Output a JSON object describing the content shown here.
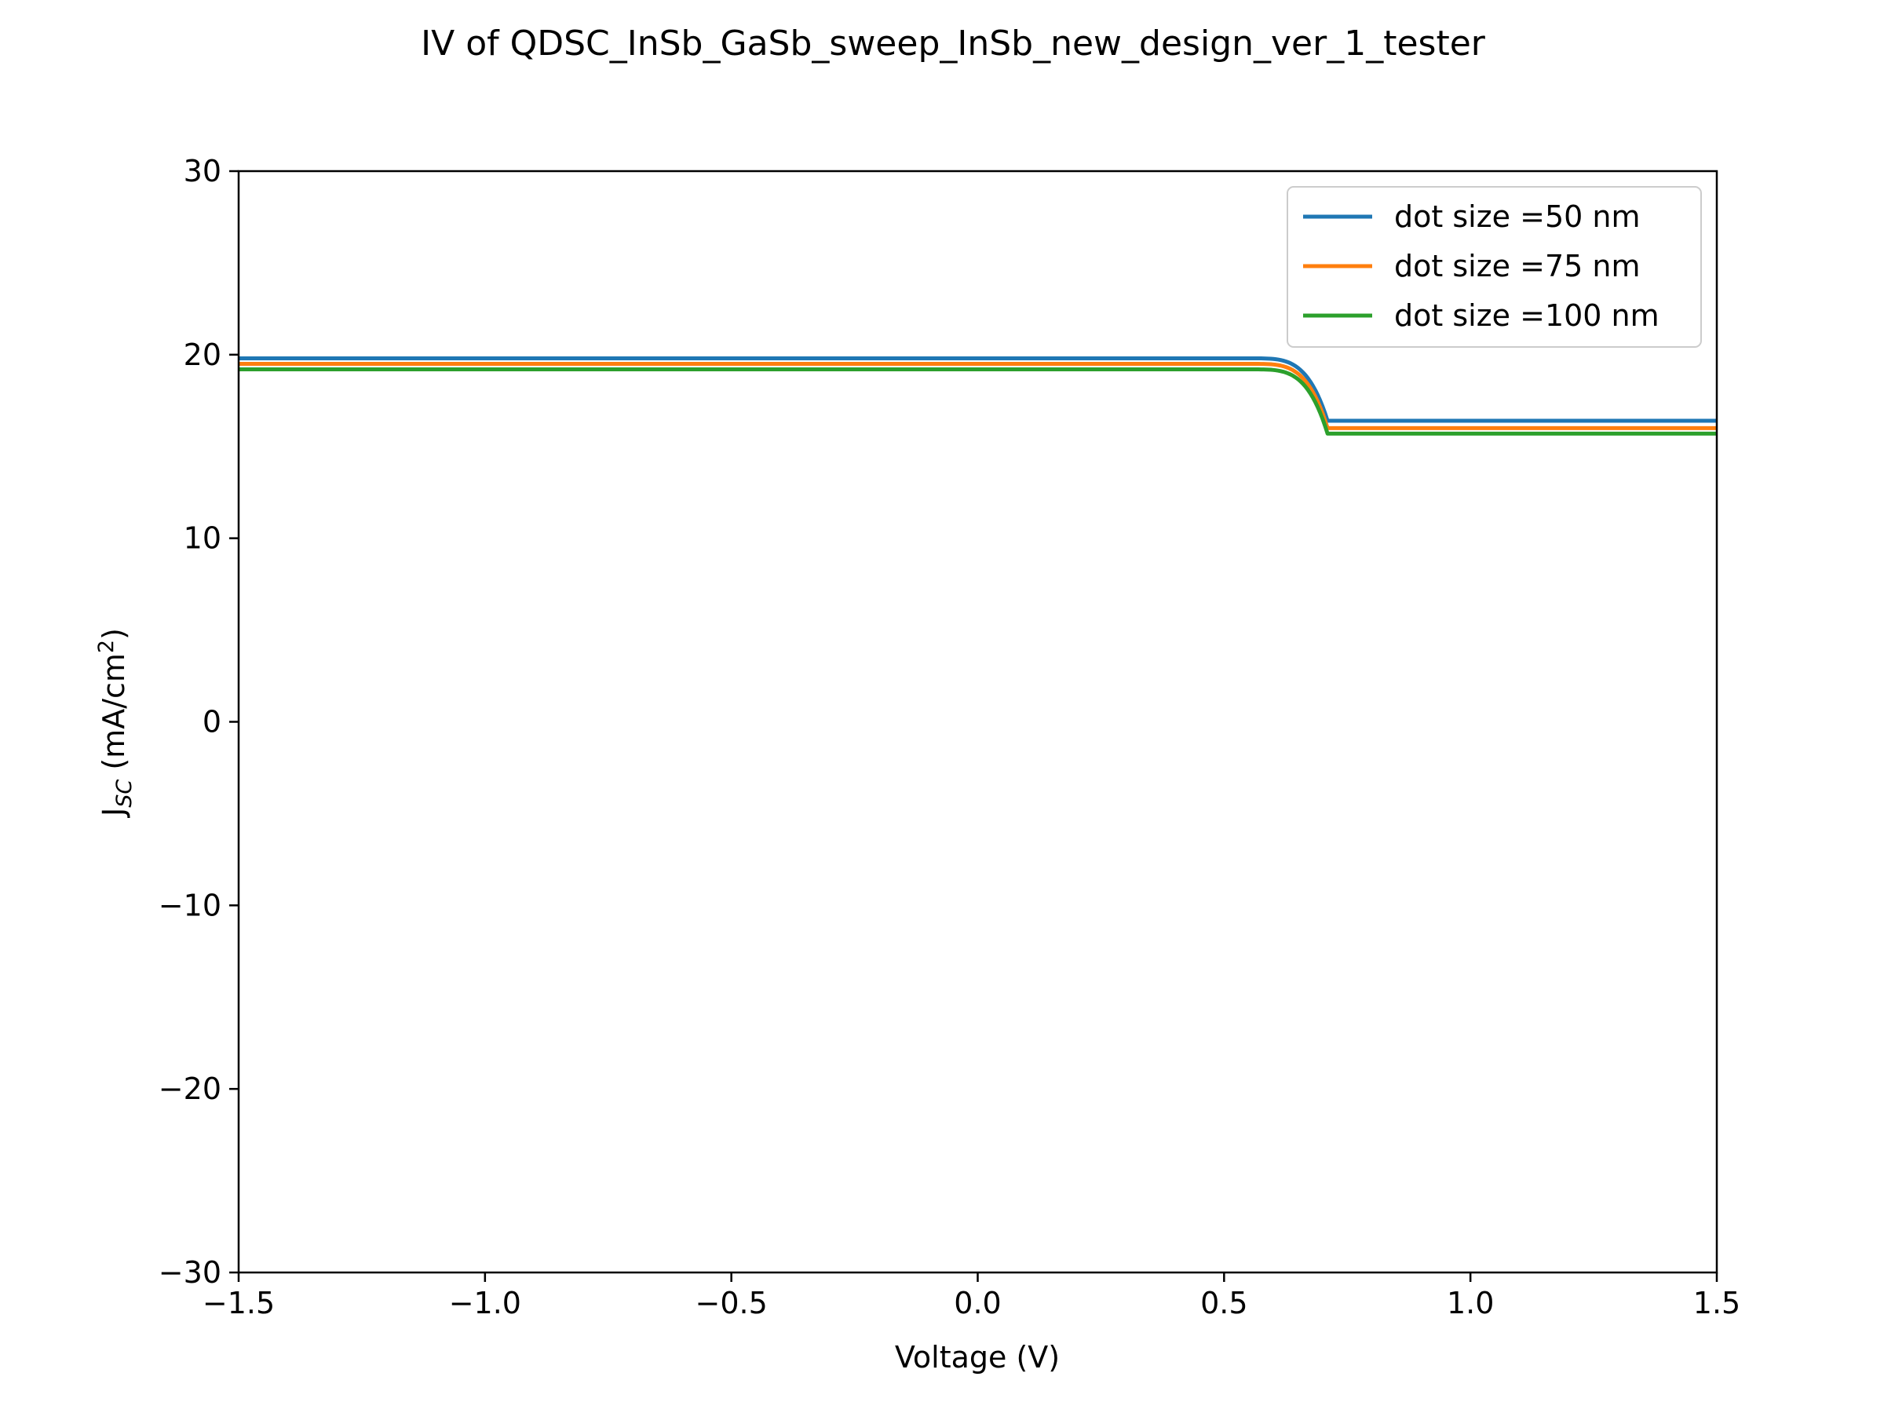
{
  "chart_data": {
    "type": "line",
    "title": "IV of QDSC_InSb_GaSb_sweep_InSb_new_design_ver_1_tester",
    "xlabel": "Voltage (V)",
    "ylabel_main": "J",
    "ylabel_sub": "SC",
    "ylabel_unit_pre": " (mA/cm",
    "ylabel_unit_sup": "2",
    "ylabel_unit_post": ")",
    "xlim": [
      -1.5,
      1.5
    ],
    "ylim": [
      -30,
      30
    ],
    "xticks": [
      -1.5,
      -1.0,
      -0.5,
      0.0,
      0.5,
      1.0,
      1.5
    ],
    "xtick_labels": [
      "−1.5",
      "−1.0",
      "−0.5",
      "0.0",
      "0.5",
      "1.0",
      "1.5"
    ],
    "yticks": [
      -30,
      -20,
      -10,
      0,
      10,
      20,
      30
    ],
    "ytick_labels": [
      "−30",
      "−20",
      "−10",
      "0",
      "10",
      "20",
      "30"
    ],
    "grid": false,
    "legend_position": "top-right",
    "transition": {
      "v_start": 0.55,
      "v_end": 0.71,
      "v_mid": 0.675
    },
    "series": [
      {
        "name": "dot size =50 nm",
        "color": "#1f77b4",
        "j_low_v": 19.8,
        "j_high_v": 16.4
      },
      {
        "name": "dot size =75 nm",
        "color": "#ff7f0e",
        "j_low_v": 19.5,
        "j_high_v": 16.0
      },
      {
        "name": "dot size =100 nm",
        "color": "#2ca02c",
        "j_low_v": 19.2,
        "j_high_v": 15.7
      }
    ]
  }
}
